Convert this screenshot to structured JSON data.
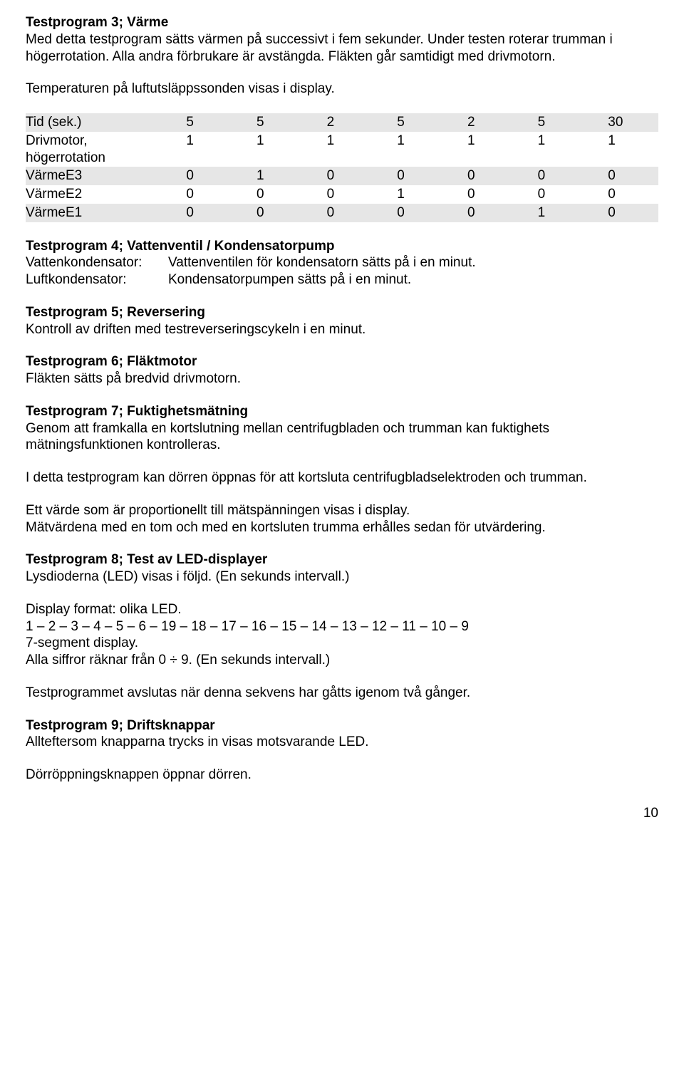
{
  "tp3": {
    "title": "Testprogram 3; Värme",
    "p1": "Med detta testprogram sätts värmen på successivt i fem sekunder. Under testen roterar trumman i högerrotation. Alla andra förbrukare är avstängda. Fläkten går samtidigt med drivmotorn.",
    "p2": "Temperaturen på luftutsläppssonden visas i display."
  },
  "table": {
    "columns": [
      "",
      "",
      "",
      "",
      "",
      "",
      "",
      ""
    ],
    "rows": [
      {
        "shade": true,
        "label": "Tid (sek.)",
        "vals": [
          "5",
          "5",
          "2",
          "5",
          "2",
          "5",
          "30"
        ]
      },
      {
        "shade": false,
        "label": "Drivmotor, högerrotation",
        "vals": [
          "1",
          "1",
          "1",
          "1",
          "1",
          "1",
          "1"
        ]
      },
      {
        "shade": true,
        "label": "VärmeE3",
        "vals": [
          "0",
          "1",
          "0",
          "0",
          "0",
          "0",
          "0"
        ]
      },
      {
        "shade": false,
        "label": "VärmeE2",
        "vals": [
          "0",
          "0",
          "0",
          "1",
          "0",
          "0",
          "0"
        ]
      },
      {
        "shade": true,
        "label": "VärmeE1",
        "vals": [
          "0",
          "0",
          "0",
          "0",
          "0",
          "1",
          "0"
        ]
      }
    ]
  },
  "tp4": {
    "title": "Testprogram 4; Vattenventil / Kondensatorpump",
    "defs": [
      {
        "term": "Vattenkondensator:",
        "desc": "Vattenventilen för kondensatorn sätts på i en minut."
      },
      {
        "term": "Luftkondensator:",
        "desc": "Kondensatorpumpen sätts på i en minut."
      }
    ]
  },
  "tp5": {
    "title": "Testprogram 5; Reversering",
    "body": "Kontroll av driften med testreverseringscykeln i en minut."
  },
  "tp6": {
    "title": "Testprogram 6; Fläktmotor",
    "body": "Fläkten sätts på bredvid drivmotorn."
  },
  "tp7": {
    "title": "Testprogram 7; Fuktighetsmätning",
    "p1": "Genom att framkalla en kortslutning mellan centrifugbladen och trumman kan fuktighets mätningsfunktionen kontrolleras.",
    "p2": "I detta testprogram kan dörren öppnas för att kortsluta centrifugbladselektroden och trumman.",
    "p3": "Ett värde som är proportionellt till mätspänningen visas i display.",
    "p4": "Mätvärdena med en tom och med en kortsluten trumma erhålles sedan för utvärdering."
  },
  "tp8": {
    "title": "Testprogram 8; Test av LED-displayer",
    "p1": "Lysdioderna (LED) visas i följd. (En sekunds intervall.)",
    "p2": "Display format: olika LED.",
    "p3": "1 – 2 – 3 – 4 – 5 – 6 – 19 – 18 – 17 – 16 – 15 – 14 – 13 – 12 – 11 – 10 – 9",
    "p4": "7-segment display.",
    "p5": "Alla siffror räknar från 0 ÷ 9. (En sekunds intervall.)",
    "p6": "Testprogrammet avslutas när denna sekvens har gåtts igenom två gånger."
  },
  "tp9": {
    "title": "Testprogram 9; Driftsknappar",
    "p1": "Allteftersom knapparna trycks in visas motsvarande LED.",
    "p2": "Dörröppningsknappen öppnar dörren."
  },
  "pagenum": "10"
}
